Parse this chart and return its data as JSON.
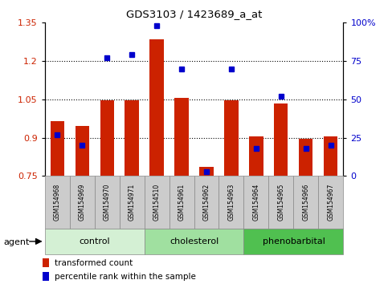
{
  "title": "GDS3103 / 1423689_a_at",
  "samples": [
    "GSM154968",
    "GSM154969",
    "GSM154970",
    "GSM154971",
    "GSM154510",
    "GSM154961",
    "GSM154962",
    "GSM154963",
    "GSM154964",
    "GSM154965",
    "GSM154966",
    "GSM154967"
  ],
  "red_values": [
    0.965,
    0.945,
    1.045,
    1.045,
    1.285,
    1.055,
    0.785,
    1.045,
    0.905,
    1.035,
    0.895,
    0.905
  ],
  "blue_values_pct": [
    27,
    20,
    77,
    79,
    98,
    70,
    3,
    70,
    18,
    52,
    18,
    20
  ],
  "ylim_left": [
    0.75,
    1.35
  ],
  "ylim_right": [
    0,
    100
  ],
  "yticks_left": [
    0.75,
    0.9,
    1.05,
    1.2,
    1.35
  ],
  "yticks_right": [
    0,
    25,
    50,
    75,
    100
  ],
  "ytick_labels_right": [
    "0",
    "25",
    "50",
    "75",
    "100%"
  ],
  "groups": [
    {
      "label": "control",
      "start": 0,
      "end": 3,
      "color": "#d4f0d4"
    },
    {
      "label": "cholesterol",
      "start": 4,
      "end": 7,
      "color": "#a0e0a0"
    },
    {
      "label": "phenobarbital",
      "start": 8,
      "end": 11,
      "color": "#50c050"
    }
  ],
  "agent_label": "agent",
  "bar_color": "#cc2200",
  "dot_color": "#0000cc",
  "bar_bottom": 0.75,
  "legend_items": [
    {
      "label": "transformed count",
      "color": "#cc2200"
    },
    {
      "label": "percentile rank within the sample",
      "color": "#0000cc"
    }
  ],
  "tick_label_color_left": "#cc2200",
  "tick_label_color_right": "#0000cc",
  "sample_box_color": "#cccccc",
  "group_border_color": "#888888"
}
